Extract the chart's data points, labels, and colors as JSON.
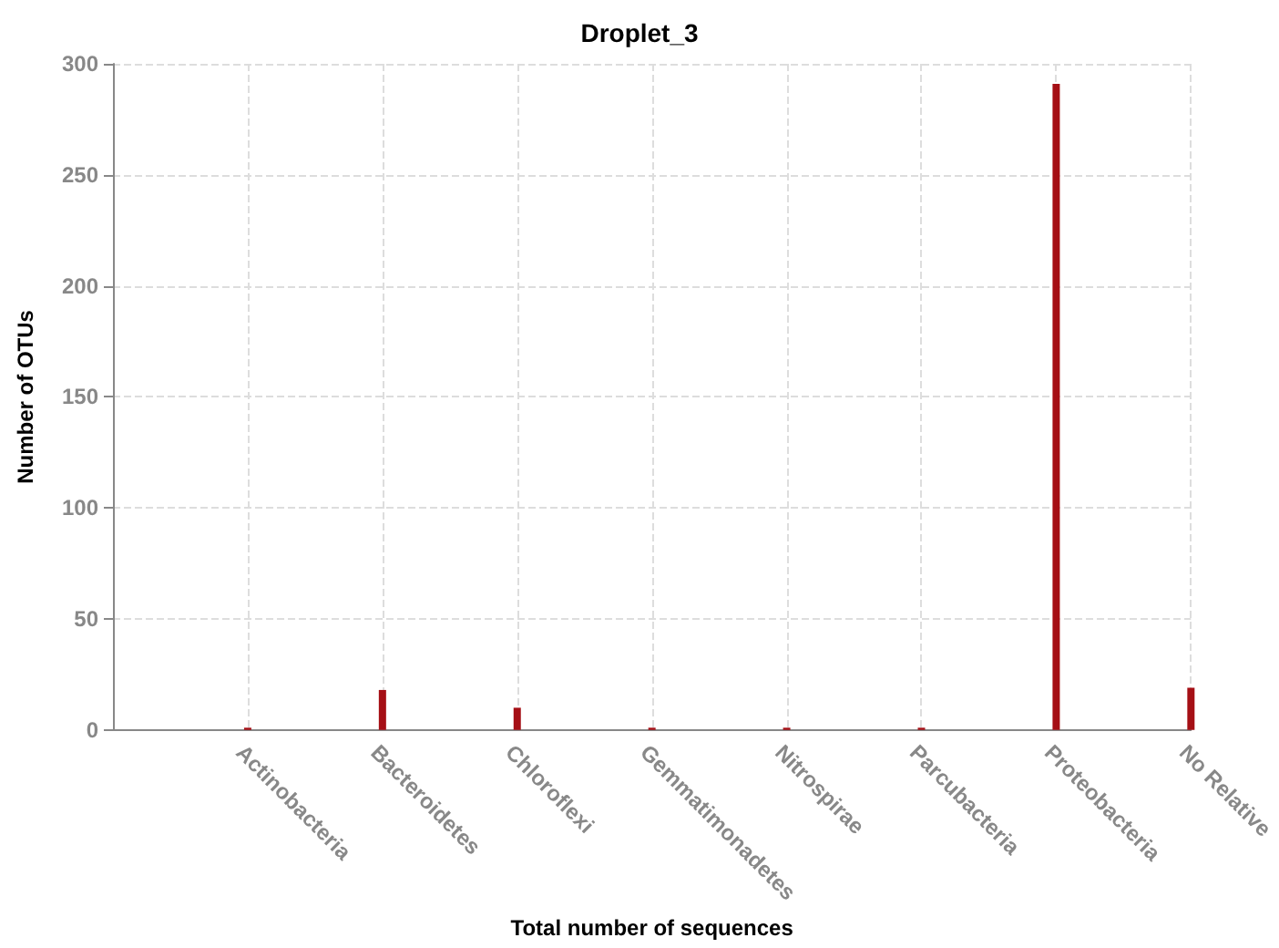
{
  "chart_data": {
    "type": "bar",
    "title": "Droplet_3",
    "xlabel": "Total number of sequences",
    "ylabel": "Number of OTUs",
    "categories": [
      "Actinobacteria",
      "Bacteroidetes",
      "Chloroflexi",
      "Gemmatimonadetes",
      "Nitrospirae",
      "Parcubacteria",
      "Proteobacteria",
      "No Relative"
    ],
    "values": [
      1,
      18,
      10,
      1,
      1,
      1,
      291,
      19
    ],
    "color": "#a50f15",
    "ylim": [
      0,
      300
    ],
    "yticks": [
      0,
      50,
      100,
      150,
      200,
      250,
      300
    ],
    "grid": true
  }
}
